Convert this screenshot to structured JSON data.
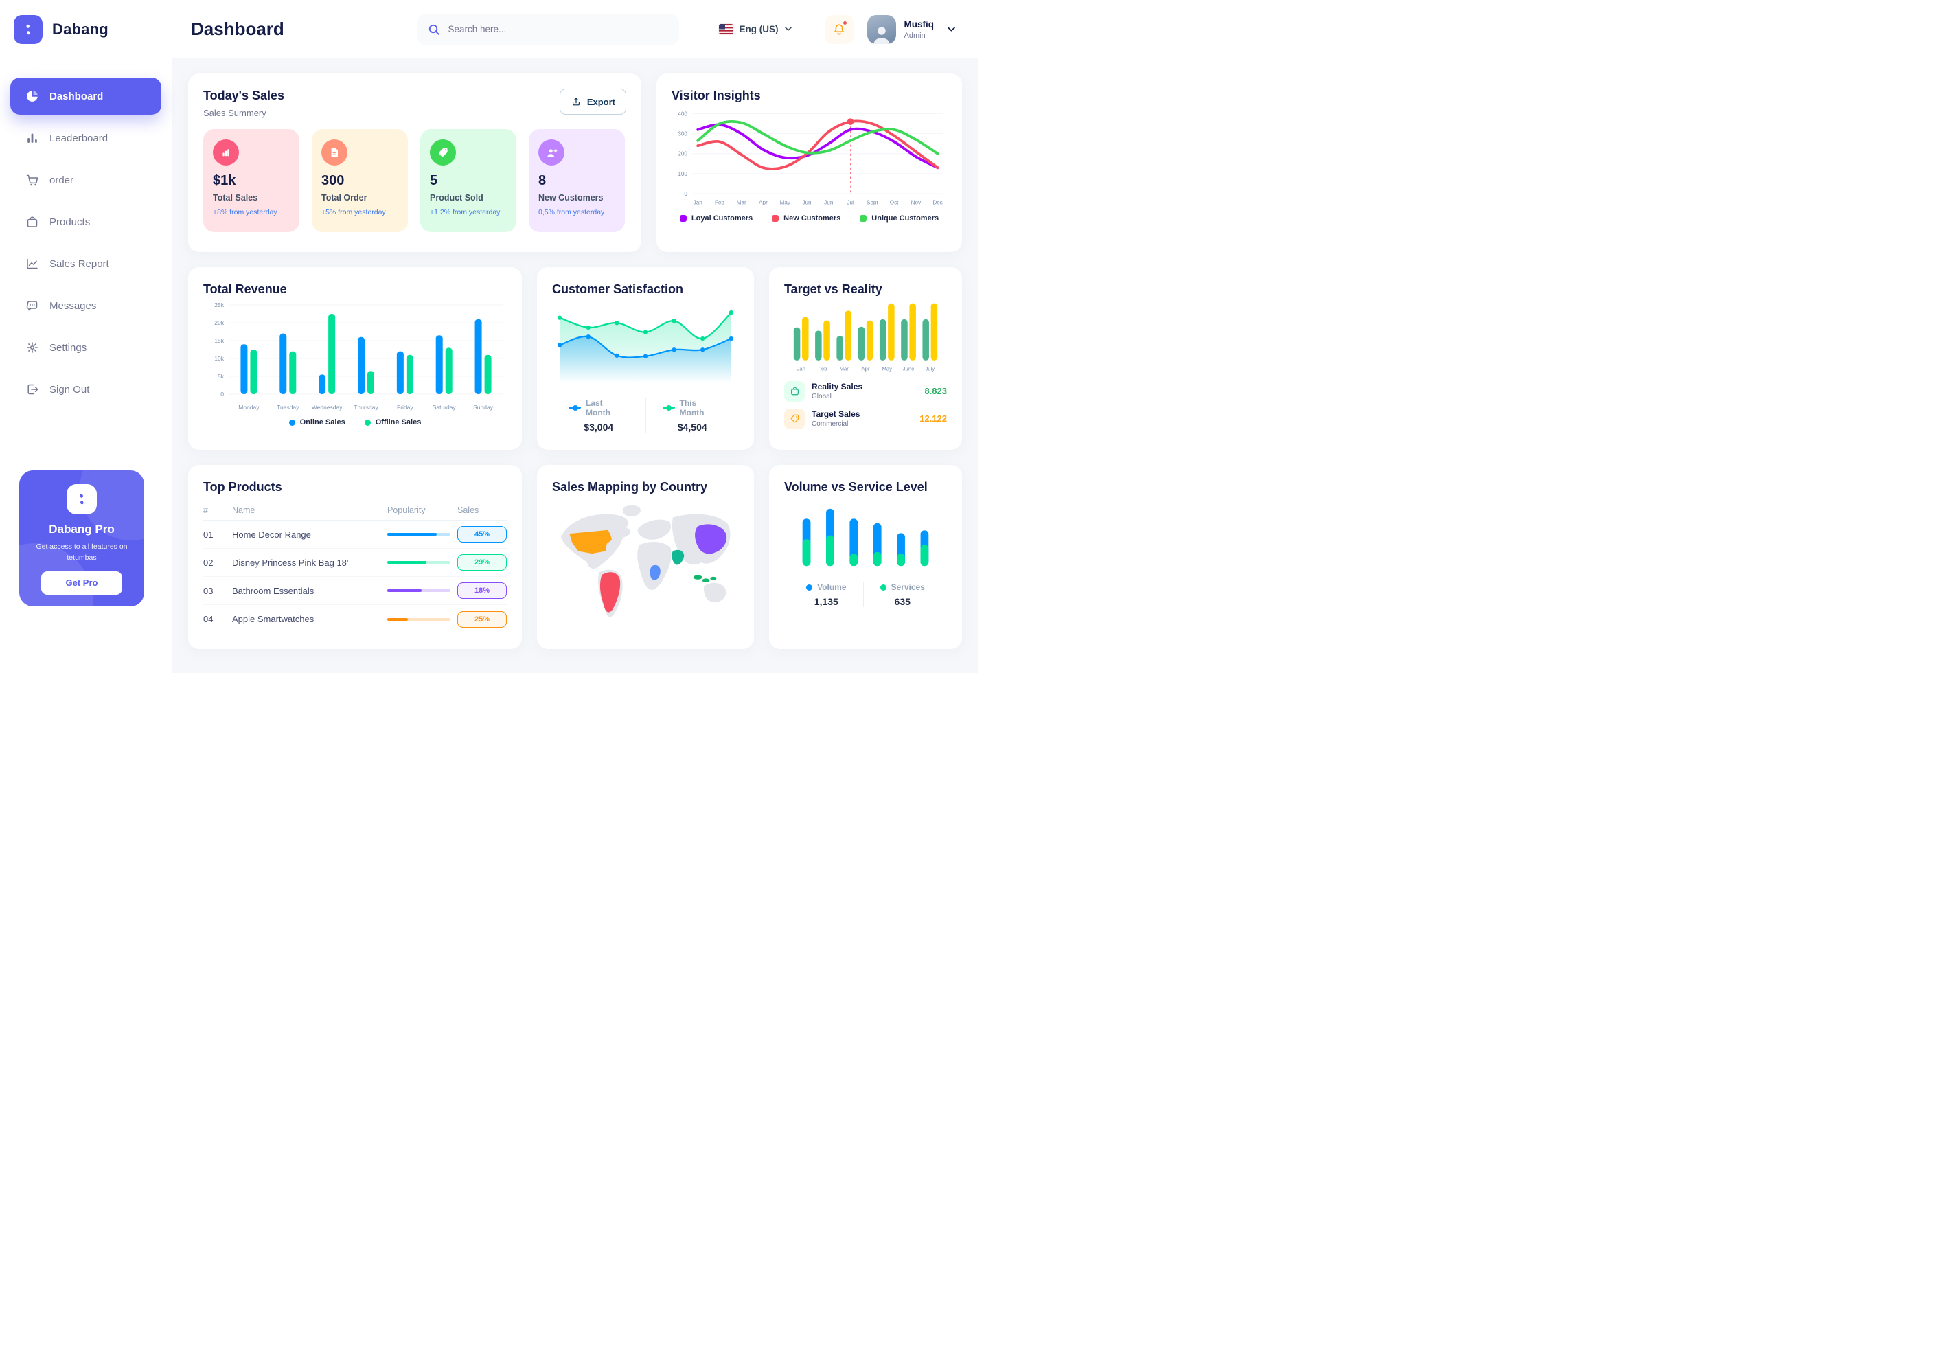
{
  "brand": {
    "name": "Dabang"
  },
  "header": {
    "title": "Dashboard",
    "search_placeholder": "Search here...",
    "language": "Eng (US)",
    "user_name": "Musfiq",
    "user_role": "Admin"
  },
  "sidebar": {
    "items": [
      {
        "label": "Dashboard",
        "icon": "pie-chart-icon",
        "active": true
      },
      {
        "label": "Leaderboard",
        "icon": "bar-chart-icon",
        "active": false
      },
      {
        "label": "order",
        "icon": "cart-icon",
        "active": false
      },
      {
        "label": "Products",
        "icon": "bag-icon",
        "active": false
      },
      {
        "label": "Sales Report",
        "icon": "line-chart-icon",
        "active": false
      },
      {
        "label": "Messages",
        "icon": "message-icon",
        "active": false
      },
      {
        "label": "Settings",
        "icon": "gear-icon",
        "active": false
      },
      {
        "label": "Sign Out",
        "icon": "sign-out-icon",
        "active": false
      }
    ],
    "pro_card": {
      "title": "Dabang Pro",
      "subtitle": "Get access to all features on tetumbas",
      "button": "Get Pro"
    }
  },
  "today_sales": {
    "title": "Today's Sales",
    "subtitle": "Sales Summery",
    "export_label": "Export",
    "stats": [
      {
        "value": "$1k",
        "label": "Total Sales",
        "delta": "+8% from yesterday",
        "bg": "#FFE2E5",
        "accent": "#FA5A7D",
        "icon": "sales-chart-icon"
      },
      {
        "value": "300",
        "label": "Total Order",
        "delta": "+5% from yesterday",
        "bg": "#FFF4DE",
        "accent": "#FF947A",
        "icon": "order-doc-icon"
      },
      {
        "value": "5",
        "label": "Product Sold",
        "delta": "+1,2% from yesterday",
        "bg": "#DCFCE7",
        "accent": "#3CD856",
        "icon": "tag-check-icon"
      },
      {
        "value": "8",
        "label": "New Customers",
        "delta": "0,5% from yesterday",
        "bg": "#F3E8FF",
        "accent": "#BF83FF",
        "icon": "new-customer-icon"
      }
    ]
  },
  "chart_data": [
    {
      "type": "line",
      "title": "Visitor Insights",
      "x": [
        "Jan",
        "Feb",
        "Mar",
        "Apr",
        "May",
        "Jun",
        "Jun",
        "Jul",
        "Sept",
        "Oct",
        "Nov",
        "Des"
      ],
      "ylim": [
        0,
        400
      ],
      "yticks": [
        0,
        100,
        200,
        300,
        400
      ],
      "grid": true,
      "legend_position": "bottom",
      "series": [
        {
          "name": "Loyal Customers",
          "color": "#A700FF",
          "values": [
            320,
            345,
            300,
            220,
            180,
            190,
            250,
            320,
            310,
            260,
            185,
            130
          ]
        },
        {
          "name": "New Customers",
          "color": "#F64E60",
          "values": [
            240,
            260,
            195,
            130,
            135,
            200,
            310,
            360,
            350,
            290,
            210,
            130
          ]
        },
        {
          "name": "Unique Customers",
          "color": "#3CD856",
          "values": [
            265,
            350,
            355,
            300,
            240,
            205,
            215,
            265,
            310,
            320,
            270,
            200
          ]
        }
      ],
      "highlight": {
        "x_index": 7,
        "x_label": "Jul",
        "series": "New Customers",
        "value": 360
      }
    },
    {
      "type": "bar",
      "title": "Total Revenue",
      "categories": [
        "Monday",
        "Tuesday",
        "Wednesday",
        "Thursday",
        "Friday",
        "Saturday",
        "Sunday"
      ],
      "ylim": [
        0,
        25000
      ],
      "ytick_labels": [
        "0",
        "5k",
        "10k",
        "15k",
        "20k",
        "25k"
      ],
      "grid": true,
      "legend_position": "bottom",
      "series": [
        {
          "name": "Online Sales",
          "color": "#0095FF",
          "values": [
            14000,
            17000,
            5500,
            16000,
            12000,
            16500,
            21000
          ]
        },
        {
          "name": "Offline Sales",
          "color": "#00E096",
          "values": [
            12500,
            12000,
            22500,
            6500,
            11000,
            13000,
            11000
          ]
        }
      ]
    },
    {
      "type": "area",
      "title": "Customer Satisfaction",
      "ylim": [
        0,
        100
      ],
      "legend_position": "bottom",
      "series": [
        {
          "name": "Last Month",
          "color": "#0095FF",
          "total": "$3,004",
          "values": [
            42,
            55,
            26,
            25,
            35,
            35,
            52
          ]
        },
        {
          "name": "This Month",
          "color": "#00E096",
          "total": "$4,504",
          "values": [
            84,
            69,
            76,
            62,
            79,
            52,
            92
          ]
        }
      ]
    },
    {
      "type": "bar",
      "title": "Target vs Reality",
      "categories": [
        "Jan",
        "Feb",
        "Mar",
        "Apr",
        "May",
        "June",
        "July"
      ],
      "ylim": [
        0,
        100
      ],
      "series": [
        {
          "name": "Reality Sales",
          "subtitle": "Global",
          "color": "#4AB58E",
          "value_label": "8.823",
          "value_color": "#27AE60",
          "icon_bg": "#E2FFF1",
          "values": [
            58,
            52,
            43,
            59,
            72,
            72,
            72
          ]
        },
        {
          "name": "Target Sales",
          "subtitle": "Commercial",
          "color": "#FFCF00",
          "value_label": "12.122",
          "value_color": "#FFA412",
          "icon_bg": "#FFF3E0",
          "values": [
            76,
            70,
            87,
            70,
            100,
            100,
            100
          ]
        }
      ]
    },
    {
      "type": "stacked-bar",
      "title": "Volume vs Service Level",
      "legend_position": "bottom",
      "series": [
        {
          "name": "Volume",
          "color": "#0095FF",
          "total": "1,135",
          "values": [
            370,
            480,
            630,
            520,
            370,
            260
          ]
        },
        {
          "name": "Services",
          "color": "#00E096",
          "total": "635",
          "values": [
            480,
            550,
            220,
            250,
            220,
            380
          ]
        }
      ]
    }
  ],
  "top_products": {
    "title": "Top Products",
    "headers": [
      "#",
      "Name",
      "Popularity",
      "Sales"
    ],
    "rows": [
      {
        "num": "01",
        "name": "Home Decor Range",
        "popularity": 78,
        "sales": "45%",
        "color": "#0095FF"
      },
      {
        "num": "02",
        "name": "Disney Princess Pink Bag 18'",
        "popularity": 62,
        "sales": "29%",
        "color": "#00E096"
      },
      {
        "num": "03",
        "name": "Bathroom Essentials",
        "popularity": 55,
        "sales": "18%",
        "color": "#884DFF"
      },
      {
        "num": "04",
        "name": "Apple Smartwatches",
        "popularity": 33,
        "sales": "25%",
        "color": "#FF8F0D"
      }
    ]
  },
  "sales_mapping": {
    "title": "Sales Mapping by Country",
    "countries": [
      {
        "name": "United States",
        "color": "#FFA412"
      },
      {
        "name": "Brazil",
        "color": "#F64E60"
      },
      {
        "name": "China",
        "color": "#8950FC"
      },
      {
        "name": "Saudi Arabia",
        "color": "#10B994"
      },
      {
        "name": "DR Congo",
        "color": "#5B8FF9"
      },
      {
        "name": "Indonesia",
        "color": "#12B76A"
      }
    ]
  }
}
